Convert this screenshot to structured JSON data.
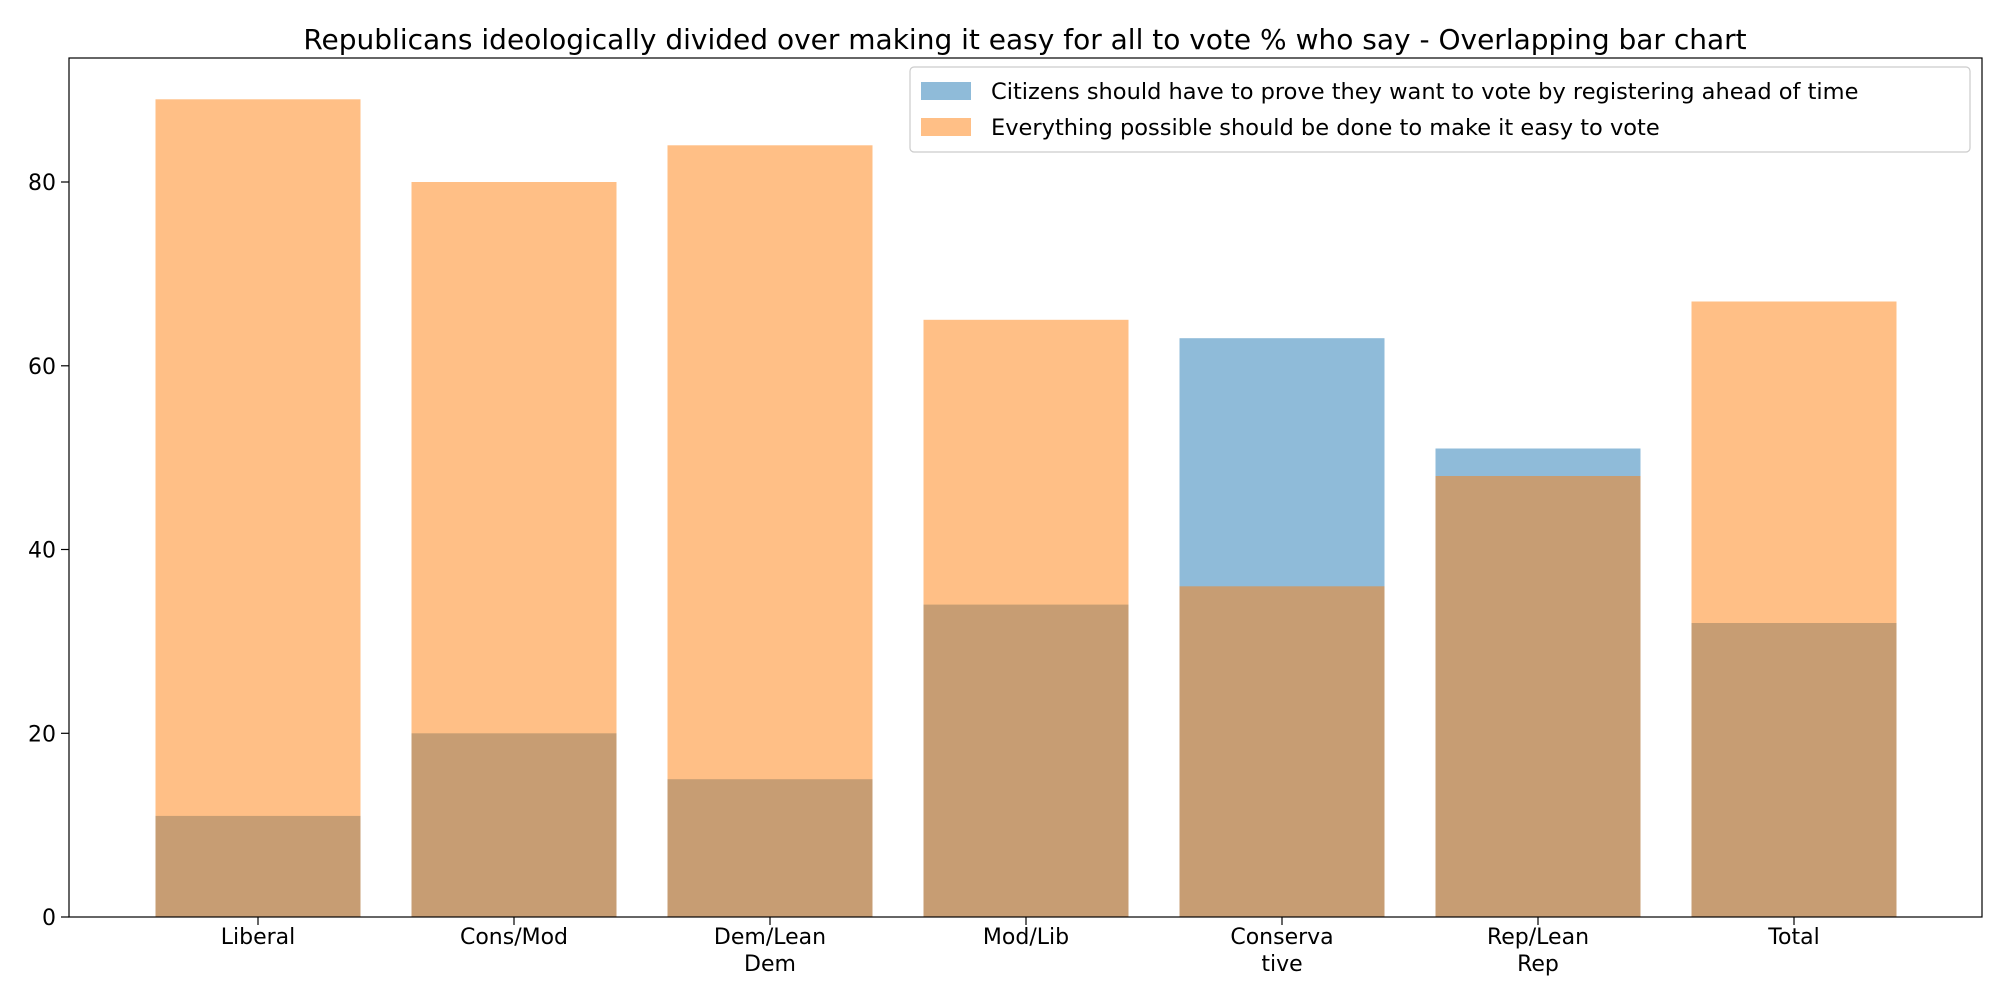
{
  "chart_data": {
    "type": "bar",
    "title": "Republicans ideologically divided over making it easy for all to vote % who say  - Overlapping bar chart",
    "xlabel": "",
    "ylabel": "",
    "ylim": [
      0,
      93.5
    ],
    "yticks": [
      0,
      20,
      40,
      60,
      80
    ],
    "categories": [
      [
        "Liberal"
      ],
      [
        "Cons/Mod"
      ],
      [
        "Dem/Lean",
        "Dem"
      ],
      [
        "Mod/Lib"
      ],
      [
        "Conserva",
        "tive"
      ],
      [
        "Rep/Lean",
        "Rep"
      ],
      [
        "Total"
      ]
    ],
    "series": [
      {
        "name": "Citizens should have to prove they want to vote by registering ahead of time",
        "color": "#1f77b4",
        "values": [
          11,
          20,
          15,
          34,
          63,
          51,
          32
        ]
      },
      {
        "name": "Everything possible should be done to make it easy to vote",
        "color": "#ff7f0e",
        "values": [
          89,
          80,
          84,
          65,
          36,
          48,
          67
        ]
      }
    ],
    "bar_alpha": 0.5,
    "legend_position": "top-right",
    "grid": false
  }
}
